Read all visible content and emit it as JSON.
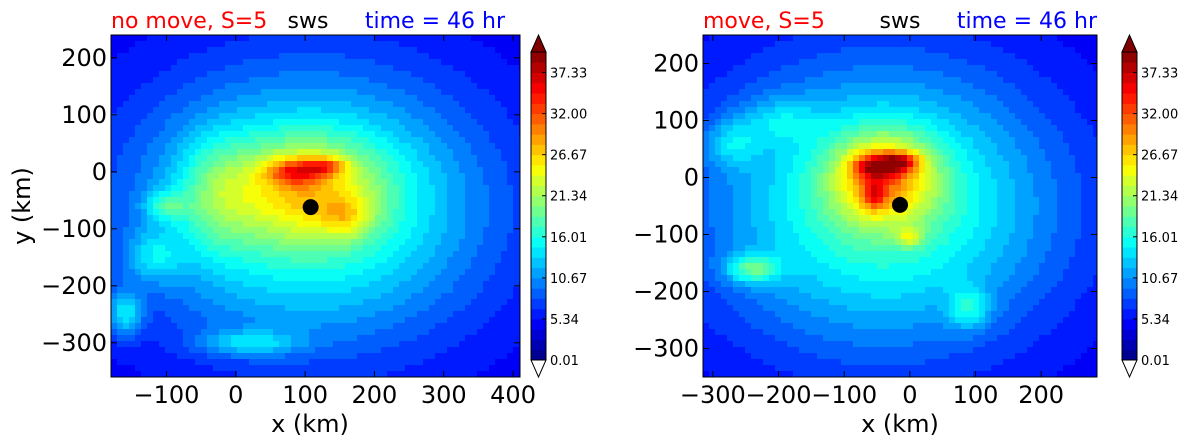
{
  "chart_data": [
    {
      "type": "heatmap",
      "title_left": "no move, S=5",
      "title_center": "sws",
      "title_right": "time = 46 hr",
      "xlabel": "x (km)",
      "ylabel": "y (km)",
      "xlim": [
        -180,
        410
      ],
      "ylim": [
        -360,
        240
      ],
      "xticks": [
        -100,
        0,
        100,
        200,
        300,
        400
      ],
      "yticks": [
        -300,
        -200,
        -100,
        0,
        100,
        200
      ],
      "center_marker": {
        "x": 108,
        "y": -62
      },
      "colorbar": {
        "min": 0.01,
        "max": 40.0,
        "ticks": [
          "0.01",
          "5.34",
          "10.67",
          "16.01",
          "21.34",
          "26.67",
          "32.00",
          "37.33"
        ]
      },
      "features": [
        {
          "x": 108,
          "y": -62,
          "v": 14,
          "sx": 260,
          "sy": 240
        },
        {
          "x": 100,
          "y": -30,
          "v": 10,
          "sx": 110,
          "sy": 90
        },
        {
          "x": 85,
          "y": 0,
          "v": 10,
          "sx": 40,
          "sy": 22
        },
        {
          "x": 130,
          "y": 10,
          "v": 8,
          "sx": 30,
          "sy": 16
        },
        {
          "x": 160,
          "y": -80,
          "v": 5,
          "sx": 35,
          "sy": 35
        },
        {
          "x": -30,
          "y": -40,
          "v": 5,
          "sx": 55,
          "sy": 100
        },
        {
          "x": -160,
          "y": -250,
          "v": 8,
          "sx": 25,
          "sy": 40
        },
        {
          "x": 20,
          "y": -300,
          "v": 6,
          "sx": 70,
          "sy": 22
        },
        {
          "x": -120,
          "y": -150,
          "v": 5,
          "sx": 40,
          "sy": 45
        },
        {
          "x": -100,
          "y": -60,
          "v": 6,
          "sx": 30,
          "sy": 25
        }
      ]
    },
    {
      "type": "heatmap",
      "title_left": "move, S=5",
      "title_center": "sws",
      "title_right": "time = 46 hr",
      "xlabel": "x (km)",
      "ylabel": "",
      "xlim": [
        -315,
        285
      ],
      "ylim": [
        -350,
        250
      ],
      "xticks": [
        -300,
        -200,
        -100,
        0,
        100,
        200
      ],
      "yticks": [
        -300,
        -200,
        -100,
        0,
        100,
        200
      ],
      "center_marker": {
        "x": -15,
        "y": -48
      },
      "colorbar": {
        "min": 0.01,
        "max": 40.0,
        "ticks": [
          "0.01",
          "5.34",
          "10.67",
          "16.01",
          "21.34",
          "26.67",
          "32.00",
          "37.33"
        ]
      },
      "features": [
        {
          "x": -40,
          "y": -50,
          "v": 14,
          "sx": 270,
          "sy": 250
        },
        {
          "x": -40,
          "y": 0,
          "v": 13,
          "sx": 80,
          "sy": 80
        },
        {
          "x": -45,
          "y": 20,
          "v": 14,
          "sx": 38,
          "sy": 20
        },
        {
          "x": -10,
          "y": 30,
          "v": 8,
          "sx": 28,
          "sy": 14
        },
        {
          "x": -55,
          "y": -30,
          "v": 8,
          "sx": 18,
          "sy": 25
        },
        {
          "x": -240,
          "y": -160,
          "v": 9,
          "sx": 40,
          "sy": 25
        },
        {
          "x": 90,
          "y": -230,
          "v": 6,
          "sx": 30,
          "sy": 35
        },
        {
          "x": 0,
          "y": -105,
          "v": 6,
          "sx": 20,
          "sy": 15
        },
        {
          "x": -270,
          "y": 60,
          "v": 5,
          "sx": 40,
          "sy": 40
        },
        {
          "x": -200,
          "y": 100,
          "v": 4,
          "sx": 60,
          "sy": 40
        }
      ]
    }
  ]
}
